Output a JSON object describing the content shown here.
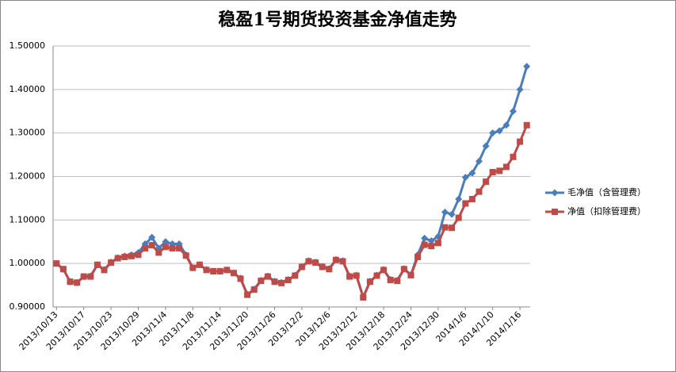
{
  "chart_data": {
    "type": "line",
    "title": "稳盈1号期货投资基金净值走势",
    "categories": [
      "2013/10/13",
      null,
      null,
      null,
      "2013/10/17",
      null,
      null,
      null,
      "2013/10/23",
      null,
      null,
      null,
      "2013/10/29",
      null,
      null,
      null,
      "2013/11/4",
      null,
      null,
      null,
      "2013/11/8",
      null,
      null,
      null,
      "2013/11/14",
      null,
      null,
      null,
      "2013/11/20",
      null,
      null,
      null,
      "2013/11/26",
      null,
      null,
      null,
      "2013/12/2",
      null,
      null,
      null,
      "2013/12/6",
      null,
      null,
      null,
      "2013/12/12",
      null,
      null,
      null,
      "2013/12/18",
      null,
      null,
      null,
      "2013/12/24",
      null,
      null,
      null,
      "2013/12/30",
      null,
      null,
      null,
      "2014/1/6",
      null,
      null,
      null,
      "2014/1/10",
      null,
      null,
      null,
      "2014/1/16",
      null
    ],
    "series": [
      {
        "name": "毛净值（含管理费）",
        "color": "#4a7ebb",
        "marker": "diamond",
        "values": [
          1.0,
          0.987,
          0.958,
          0.956,
          0.97,
          0.971,
          0.997,
          0.986,
          1.003,
          1.013,
          1.017,
          1.02,
          1.025,
          1.045,
          1.06,
          1.035,
          1.05,
          1.045,
          1.045,
          1.02,
          0.99,
          0.997,
          0.986,
          0.982,
          0.982,
          0.985,
          0.978,
          0.966,
          0.929,
          0.941,
          0.961,
          0.971,
          0.959,
          0.956,
          0.963,
          0.973,
          0.993,
          1.006,
          1.003,
          0.993,
          0.988,
          1.009,
          1.006,
          0.971,
          0.973,
          0.923,
          0.959,
          0.973,
          0.986,
          0.963,
          0.961,
          0.988,
          0.974,
          1.02,
          1.058,
          1.052,
          1.062,
          1.118,
          1.113,
          1.148,
          1.198,
          1.208,
          1.235,
          1.27,
          1.3,
          1.305,
          1.318,
          1.35,
          1.4,
          1.453
        ]
      },
      {
        "name": "净值（扣除管理费）",
        "color": "#be4b48",
        "marker": "square",
        "values": [
          1.0,
          0.987,
          0.958,
          0.956,
          0.97,
          0.97,
          0.997,
          0.985,
          1.002,
          1.012,
          1.015,
          1.017,
          1.02,
          1.035,
          1.042,
          1.025,
          1.038,
          1.035,
          1.035,
          1.018,
          0.99,
          0.997,
          0.985,
          0.982,
          0.982,
          0.985,
          0.978,
          0.965,
          0.928,
          0.94,
          0.96,
          0.97,
          0.958,
          0.955,
          0.962,
          0.972,
          0.992,
          1.005,
          1.002,
          0.992,
          0.987,
          1.008,
          1.005,
          0.97,
          0.972,
          0.922,
          0.958,
          0.972,
          0.985,
          0.962,
          0.96,
          0.987,
          0.973,
          1.015,
          1.043,
          1.04,
          1.047,
          1.083,
          1.082,
          1.105,
          1.138,
          1.148,
          1.165,
          1.188,
          1.21,
          1.213,
          1.222,
          1.245,
          1.28,
          1.318
        ]
      }
    ],
    "ylim": [
      0.9,
      1.5
    ],
    "yticks": [
      {
        "value": 0.9,
        "label": "0.90000"
      },
      {
        "value": 1.0,
        "label": "1.00000"
      },
      {
        "value": 1.1,
        "label": "1.10000"
      },
      {
        "value": 1.2,
        "label": "1.20000"
      },
      {
        "value": 1.3,
        "label": "1.30000"
      },
      {
        "value": 1.4,
        "label": "1.40000"
      },
      {
        "value": 1.5,
        "label": "1.50000"
      }
    ],
    "grid": true,
    "legend": "right"
  }
}
